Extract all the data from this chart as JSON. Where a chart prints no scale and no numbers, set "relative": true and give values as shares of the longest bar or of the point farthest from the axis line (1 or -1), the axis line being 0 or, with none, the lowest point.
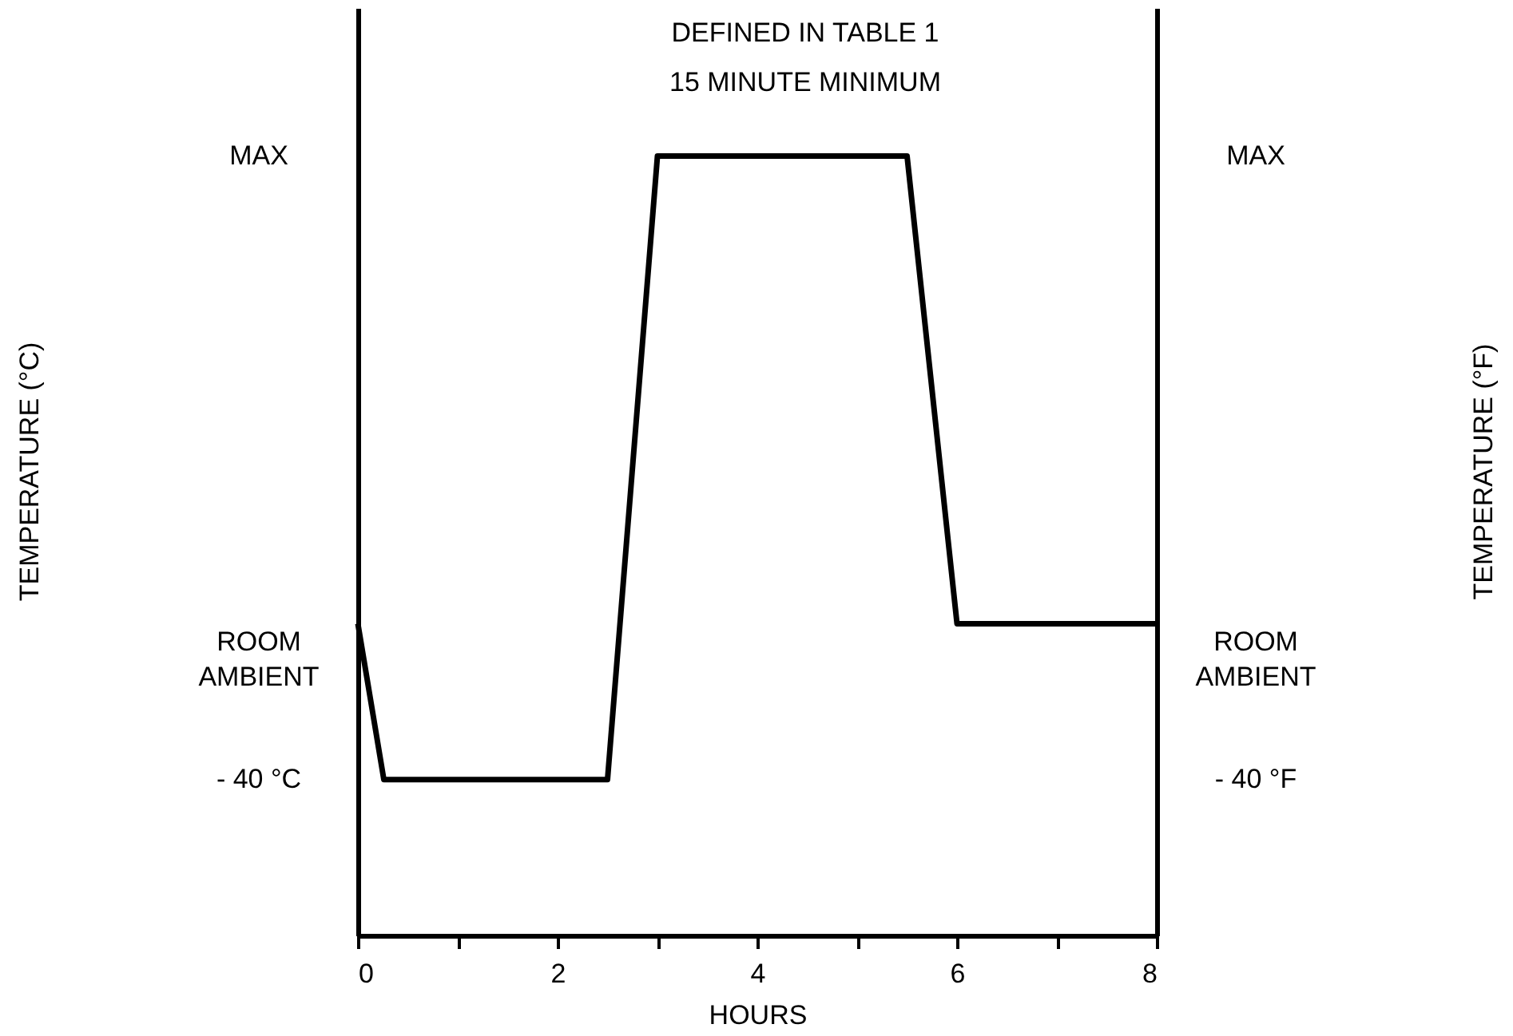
{
  "chart_data": {
    "type": "line",
    "relative": true,
    "xlabel": "HOURS",
    "annotations": [
      "DEFINED IN TABLE 1",
      "15 MINUTE MINIMUM",
      "TEMPERATURE (°C)",
      "TEMPERATURE (°F)",
      "MAX",
      "ROOM AMBIENT",
      "- 40 °C",
      "MAX",
      "ROOM AMBIENT",
      "- 40 °F"
    ],
    "x": [
      0,
      0.26,
      2.5,
      3.0,
      5.5,
      6.0,
      8
    ],
    "series": [
      {
        "color": "#000000",
        "values": [
          0.4,
          0.2,
          0.2,
          1,
          1,
          0.4,
          0.4
        ]
      }
    ],
    "xlim": [
      0,
      8
    ],
    "xticks": [
      0,
      {
        "value": 1,
        "label": null
      },
      2,
      {
        "value": 3,
        "label": null
      },
      4,
      {
        "value": 5,
        "label": null
      },
      6,
      {
        "value": 7,
        "label": null
      },
      8
    ],
    "grid": false,
    "legend": false,
    "marker": "none",
    "line_style": "solid"
  }
}
